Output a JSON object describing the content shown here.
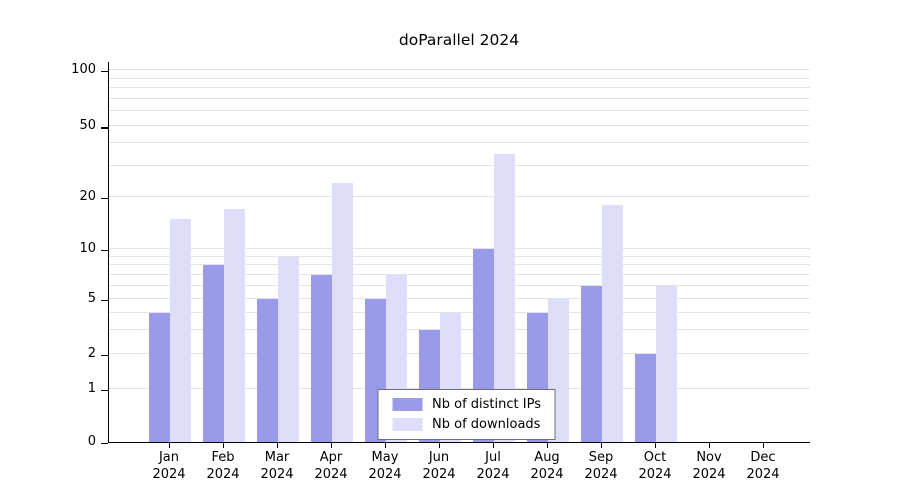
{
  "chart_data": {
    "type": "bar",
    "title": "doParallel 2024",
    "categories": [
      "Jan",
      "Feb",
      "Mar",
      "Apr",
      "May",
      "Jun",
      "Jul",
      "Aug",
      "Sep",
      "Oct",
      "Nov",
      "Dec"
    ],
    "category_year": "2024",
    "series": [
      {
        "name": "Nb of distinct IPs",
        "color": "#9a9aeb",
        "values": [
          4,
          8,
          5,
          7,
          5,
          3,
          10,
          4,
          6,
          2,
          0,
          0
        ]
      },
      {
        "name": "Nb of downloads",
        "color": "#dedefa",
        "values": [
          15,
          17,
          9,
          24,
          7,
          4,
          35,
          5,
          18,
          6,
          0,
          0
        ]
      }
    ],
    "y_ticks": [
      0,
      1,
      2,
      5,
      10,
      20,
      50,
      100
    ],
    "gridline_values": [
      1,
      2,
      3,
      4,
      5,
      6,
      7,
      8,
      9,
      10,
      20,
      30,
      40,
      50,
      60,
      70,
      80,
      90,
      100
    ],
    "y_scale": "log",
    "ylim": [
      0,
      100
    ],
    "grid": "horizontal",
    "legend_position": "bottom-center-inside"
  },
  "colors": {
    "axis": "#000000",
    "gridline": "#e4e4e4",
    "background": "#ffffff"
  }
}
